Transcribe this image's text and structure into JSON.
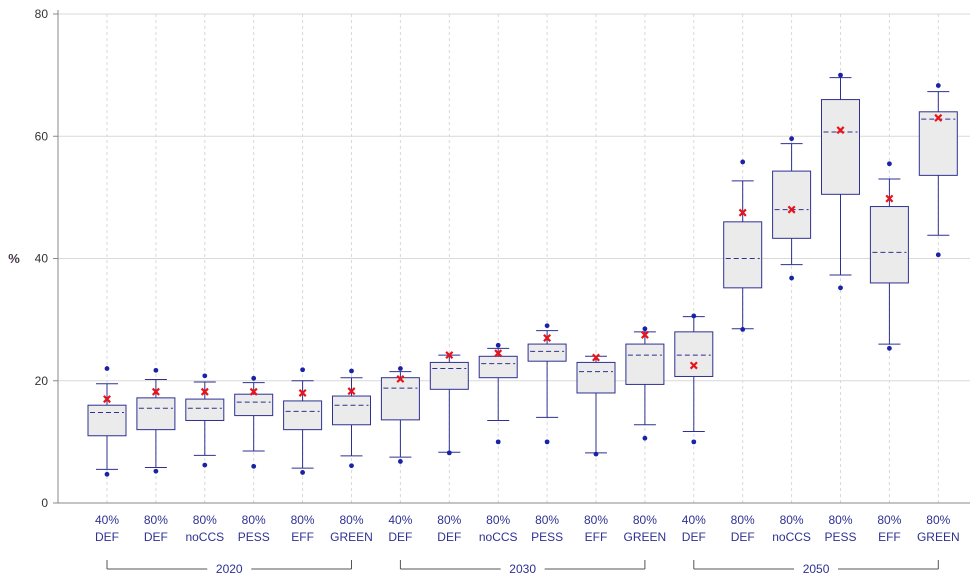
{
  "colors": {
    "box_fill": "#ebebeb",
    "box_stroke": "#2e3192",
    "median": "#2e3192",
    "mean_marker": "#e8141c",
    "outlier": "#1a22a6",
    "grid": "#d9d9d9",
    "label": "#2e3192"
  },
  "chart_data": {
    "type": "box",
    "title": "",
    "xlabel": "",
    "ylabel": "%",
    "ylim": [
      0,
      80
    ],
    "yticks": [
      "0",
      "20",
      "40",
      "60",
      "80"
    ],
    "grid": "vertical dashed, horizontal at y ticks",
    "categories": [
      {
        "line1": "40%",
        "line2": "DEF",
        "whisker_low": 5.5,
        "q1": 11,
        "median": 14.8,
        "q3": 16,
        "whisker_high": 19.5,
        "mean": 17,
        "outliers": [
          4.7,
          22
        ]
      },
      {
        "line1": "80%",
        "line2": "DEF",
        "whisker_low": 5.8,
        "q1": 12,
        "median": 15.5,
        "q3": 17.2,
        "whisker_high": 20.2,
        "mean": 18.2,
        "outliers": [
          5.2,
          21.7
        ]
      },
      {
        "line1": "80%",
        "line2": "noCCS",
        "whisker_low": 7.8,
        "q1": 13.5,
        "median": 15.5,
        "q3": 17,
        "whisker_high": 19.8,
        "mean": 18.2,
        "outliers": [
          6.2,
          20.8
        ]
      },
      {
        "line1": "80%",
        "line2": "PESS",
        "whisker_low": 8.5,
        "q1": 14.3,
        "median": 16.5,
        "q3": 17.8,
        "whisker_high": 19.7,
        "mean": 18.2,
        "outliers": [
          6,
          20.4
        ]
      },
      {
        "line1": "80%",
        "line2": "EFF",
        "whisker_low": 5.7,
        "q1": 12,
        "median": 15,
        "q3": 16.7,
        "whisker_high": 20,
        "mean": 18,
        "outliers": [
          5,
          21.8
        ]
      },
      {
        "line1": "80%",
        "line2": "GREEN",
        "whisker_low": 7.7,
        "q1": 12.8,
        "median": 16,
        "q3": 17.5,
        "whisker_high": 20.5,
        "mean": 18.3,
        "outliers": [
          6.1,
          21.6
        ]
      },
      {
        "line1": "40%",
        "line2": "DEF",
        "whisker_low": 7.5,
        "q1": 13.6,
        "median": 18.8,
        "q3": 20.5,
        "whisker_high": 21.5,
        "mean": 20.3,
        "outliers": [
          6.8,
          22
        ]
      },
      {
        "line1": "80%",
        "line2": "DEF",
        "whisker_low": 8.3,
        "q1": 18.6,
        "median": 22,
        "q3": 23,
        "whisker_high": 24.2,
        "mean": 24.2,
        "outliers": [
          8.2
        ]
      },
      {
        "line1": "80%",
        "line2": "noCCS",
        "whisker_low": 13.5,
        "q1": 20.5,
        "median": 22.8,
        "q3": 24,
        "whisker_high": 25.3,
        "mean": 24.5,
        "outliers": [
          10,
          25.8
        ]
      },
      {
        "line1": "80%",
        "line2": "PESS",
        "whisker_low": 14,
        "q1": 23.2,
        "median": 24.8,
        "q3": 26,
        "whisker_high": 28.2,
        "mean": 27,
        "outliers": [
          10,
          29
        ]
      },
      {
        "line1": "80%",
        "line2": "EFF",
        "whisker_low": 8.2,
        "q1": 18,
        "median": 21.5,
        "q3": 23,
        "whisker_high": 24,
        "mean": 23.8,
        "outliers": [
          8
        ]
      },
      {
        "line1": "80%",
        "line2": "GREEN",
        "whisker_low": 12.8,
        "q1": 19.4,
        "median": 24.2,
        "q3": 26,
        "whisker_high": 28,
        "mean": 27.5,
        "outliers": [
          10.6,
          28.5
        ]
      },
      {
        "line1": "40%",
        "line2": "DEF",
        "whisker_low": 11.7,
        "q1": 20.7,
        "median": 24.2,
        "q3": 28,
        "whisker_high": 30.5,
        "mean": 22.5,
        "outliers": [
          10,
          30.6
        ]
      },
      {
        "line1": "80%",
        "line2": "DEF",
        "whisker_low": 28.5,
        "q1": 35.2,
        "median": 40,
        "q3": 46,
        "whisker_high": 52.7,
        "mean": 47.5,
        "outliers": [
          28.4,
          55.8
        ]
      },
      {
        "line1": "80%",
        "line2": "noCCS",
        "whisker_low": 39,
        "q1": 43.3,
        "median": 48,
        "q3": 54.3,
        "whisker_high": 58.8,
        "mean": 48,
        "outliers": [
          36.8,
          59.6
        ]
      },
      {
        "line1": "80%",
        "line2": "PESS",
        "whisker_low": 37.3,
        "q1": 50.5,
        "median": 60.7,
        "q3": 66,
        "whisker_high": 69.6,
        "mean": 61,
        "outliers": [
          35.2,
          70
        ]
      },
      {
        "line1": "80%",
        "line2": "EFF",
        "whisker_low": 26,
        "q1": 36,
        "median": 41,
        "q3": 48.5,
        "whisker_high": 53,
        "mean": 49.8,
        "outliers": [
          25.3,
          55.5
        ]
      },
      {
        "line1": "80%",
        "line2": "GREEN",
        "whisker_low": 43.8,
        "q1": 53.6,
        "median": 62.8,
        "q3": 64,
        "whisker_high": 67.3,
        "mean": 63,
        "outliers": [
          40.6,
          68.3
        ]
      }
    ],
    "groups": [
      {
        "label": "2020",
        "from": 0,
        "to": 5
      },
      {
        "label": "2030",
        "from": 6,
        "to": 11
      },
      {
        "label": "2050",
        "from": 12,
        "to": 17
      }
    ]
  }
}
